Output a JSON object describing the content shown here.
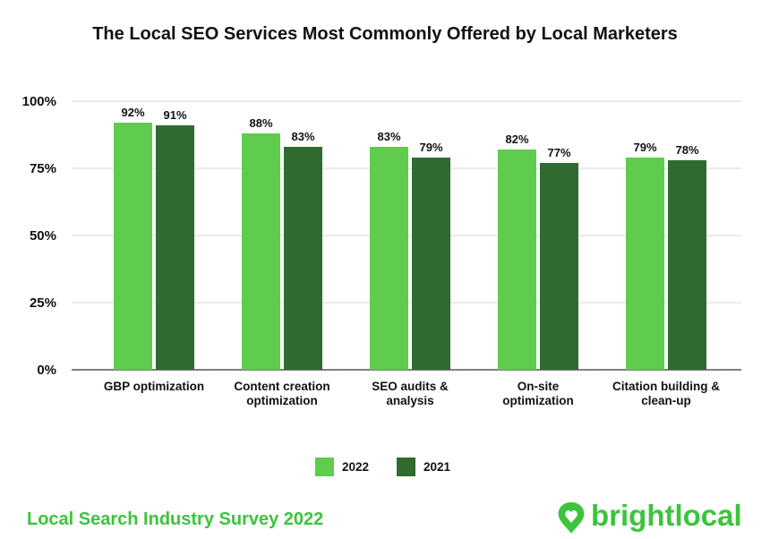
{
  "chart_data": {
    "type": "bar",
    "title": "The Local SEO Services Most Commonly Offered by Local Marketers",
    "categories": [
      [
        "GBP optimization"
      ],
      [
        "Content creation",
        "optimization"
      ],
      [
        "SEO audits &",
        "analysis"
      ],
      [
        "On-site",
        "optimization"
      ],
      [
        "Citation building &",
        "clean-up"
      ]
    ],
    "series": [
      {
        "name": "2022",
        "color": "#5fcc4e",
        "values": [
          92,
          88,
          83,
          82,
          79
        ],
        "labels": [
          "92%",
          "88%",
          "83%",
          "82%",
          "79%"
        ]
      },
      {
        "name": "2021",
        "color": "#2f6b2f",
        "values": [
          91,
          83,
          79,
          77,
          78
        ],
        "labels": [
          "91%",
          "83%",
          "79%",
          "77%",
          "78%"
        ]
      }
    ],
    "ylim": [
      0,
      100
    ],
    "yticks": [
      {
        "value": 0,
        "label": "0%"
      },
      {
        "value": 25,
        "label": "25%"
      },
      {
        "value": 50,
        "label": "50%"
      },
      {
        "value": 75,
        "label": "75%"
      },
      {
        "value": 100,
        "label": "100%"
      }
    ],
    "grid": true,
    "legend_position": "bottom-center",
    "xlabel": "",
    "ylabel": ""
  },
  "footer": {
    "survey": "Local Search Industry Survey 2022",
    "brand": "brightlocal",
    "color": "#3cc43c"
  }
}
